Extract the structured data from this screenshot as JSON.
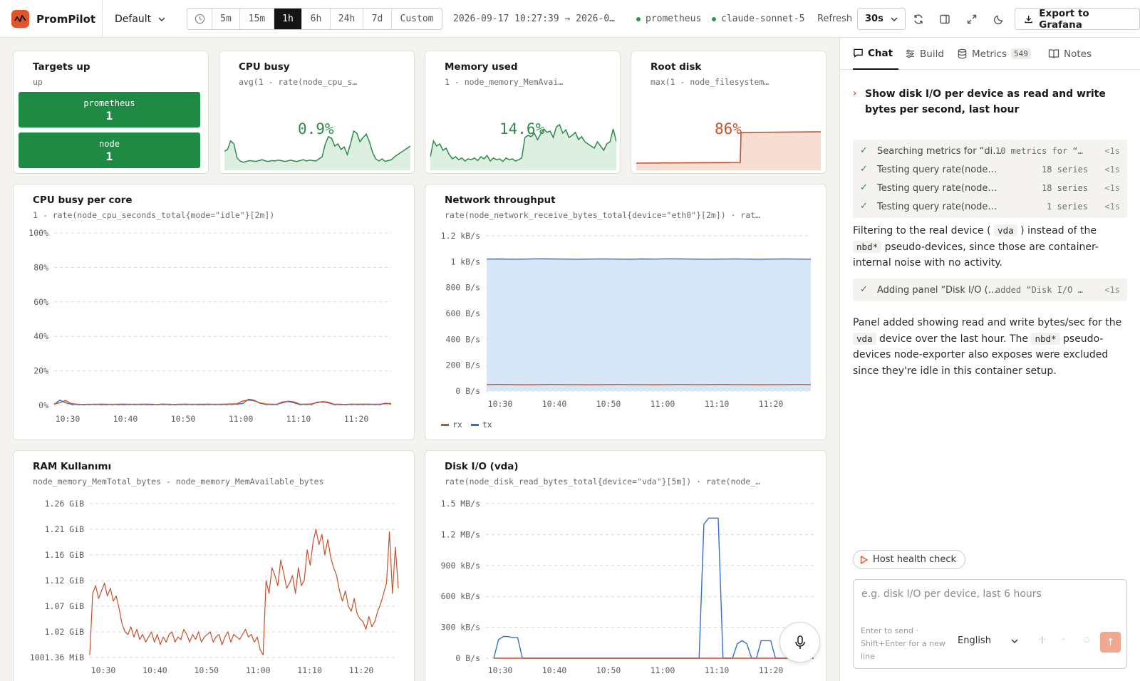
{
  "header": {
    "brand": "PromPilot",
    "workspace": "Default",
    "time_ranges": [
      "5m",
      "15m",
      "1h",
      "6h",
      "24h",
      "7d",
      "Custom"
    ],
    "active_range": "1h",
    "time_window": "2026-09-17 10:27:39 → 2026-0…",
    "datasource": "prometheus",
    "model": "claude-sonnet-5",
    "refresh_label": "Refresh",
    "refresh_value": "30s",
    "export_label": "Export to Grafana",
    "accent_color": "#e2542a"
  },
  "panels": {
    "targets": {
      "title": "Targets up",
      "query": "up",
      "items": [
        {
          "name": "prometheus",
          "value": "1"
        },
        {
          "name": "node",
          "value": "1"
        }
      ],
      "color": "#1f8a43"
    },
    "cpu_stat": {
      "title": "CPU busy",
      "query": "avg(1 - rate(node_cpu_s…",
      "value": "0.9%",
      "color": "#2e8c4a",
      "spark": [
        0.38,
        0.42,
        0.62,
        0.55,
        0.22,
        0.15,
        0.12,
        0.14,
        0.16,
        0.15,
        0.14,
        0.16,
        0.18,
        0.15,
        0.14,
        0.16,
        0.15,
        0.17,
        0.16,
        0.14,
        0.15,
        0.17,
        0.15,
        0.14,
        0.16,
        0.18,
        0.15,
        0.17,
        0.16,
        0.15,
        0.2,
        0.25,
        0.55,
        0.72,
        0.68,
        0.5,
        0.55,
        0.42,
        0.48,
        0.3,
        0.55,
        0.85,
        0.8,
        0.6,
        0.7,
        0.78,
        0.6,
        0.35,
        0.2,
        0.15,
        0.2,
        0.14,
        0.16,
        0.18,
        0.25,
        0.3,
        0.35,
        0.4,
        0.45,
        0.5
      ]
    },
    "mem_stat": {
      "title": "Memory used",
      "query": "1 - node_memory_MemAvai…",
      "value": "14.6%",
      "color": "#2e8c4a",
      "spark": [
        0.25,
        0.62,
        0.5,
        0.55,
        0.4,
        0.45,
        0.3,
        0.2,
        0.25,
        0.18,
        0.22,
        0.15,
        0.2,
        0.18,
        0.22,
        0.16,
        0.25,
        0.2,
        0.28,
        0.15,
        0.22,
        0.18,
        0.2,
        0.14,
        0.22,
        0.18,
        0.2,
        0.15,
        0.18,
        0.22,
        0.7,
        0.75,
        0.72,
        0.8,
        0.65,
        0.78,
        0.9,
        0.82,
        0.85,
        0.7,
        0.95,
        1.0,
        0.8,
        0.88,
        0.7,
        0.75,
        0.82,
        0.65,
        0.72,
        0.6,
        0.55,
        0.5,
        0.45,
        0.6,
        0.5,
        0.4,
        0.55,
        0.6,
        0.9,
        0.6
      ]
    },
    "disk_stat": {
      "title": "Root disk",
      "query": "max(1 - node_filesystem…",
      "value": "86%",
      "color": "#c7502a"
    },
    "cpu_core": {
      "title": "CPU busy per core",
      "query": "1 - rate(node_cpu_seconds_total{mode=\"idle\"}[2m])"
    },
    "network": {
      "title": "Network throughput",
      "query": "rate(node_network_receive_bytes_total{device=\"eth0\"}[2m]) · rat…"
    },
    "ram": {
      "title": "RAM Kullanımı",
      "query": "node_memory_MemTotal_bytes - node_memory_MemAvailable_bytes"
    },
    "disk_io": {
      "title": "Disk I/O (vda)",
      "query": "rate(node_disk_read_bytes_total{device=\"vda\"}[5m]) · rate(node_…"
    }
  },
  "chart_data": [
    {
      "type": "line",
      "name": "cpu_busy_per_core",
      "x_ticks": [
        "10:30",
        "10:40",
        "10:50",
        "11:00",
        "11:10",
        "11:20"
      ],
      "y_ticks": [
        "100%",
        "80%",
        "60%",
        "40%",
        "20%",
        "0%"
      ],
      "ylim": [
        0,
        100
      ],
      "grid": true,
      "series": [
        {
          "color": "#2f6fd6",
          "values": [
            0.5,
            3,
            1.5,
            0.6,
            0.5,
            0.4,
            0.5,
            0.6,
            0.5,
            0.4,
            0.6,
            0.5,
            0.4,
            0.5,
            0.6,
            0.5,
            0.5,
            0.4,
            0.5,
            0.6,
            0.5,
            0.4,
            0.5,
            0.5,
            0.6,
            0.5,
            0.4,
            0.5,
            0.6,
            0.5,
            0.5,
            0.6,
            0.7,
            1.0,
            3.5,
            3.0,
            1.2,
            0.6,
            0.5,
            0.5,
            2.0,
            2.2,
            1.5,
            0.5,
            0.6,
            0.5,
            1.8,
            2.0,
            1.4,
            0.5,
            0.5,
            0.4,
            0.6,
            0.5,
            0.5,
            0.6,
            0.5,
            0.5,
            1.2,
            0.7
          ]
        },
        {
          "color": "#c7502a",
          "values": [
            0.8,
            1.5,
            2.8,
            1.0,
            0.6,
            0.5,
            0.6,
            0.5,
            0.7,
            0.6,
            0.5,
            0.6,
            0.7,
            0.6,
            0.5,
            0.6,
            0.7,
            0.6,
            0.5,
            0.7,
            0.6,
            0.5,
            0.6,
            0.7,
            0.5,
            0.6,
            0.6,
            0.7,
            0.5,
            0.6,
            0.7,
            0.8,
            0.9,
            2.5,
            3.0,
            2.6,
            1.5,
            0.8,
            0.6,
            0.7,
            1.5,
            2.4,
            2.0,
            0.7,
            0.6,
            0.8,
            1.5,
            2.2,
            1.8,
            0.6,
            0.6,
            0.5,
            0.7,
            0.6,
            0.7,
            0.6,
            0.6,
            0.7,
            0.9,
            1.1
          ]
        }
      ]
    },
    {
      "type": "area",
      "name": "network_throughput",
      "x_ticks": [
        "10:30",
        "10:40",
        "10:50",
        "11:00",
        "11:10",
        "11:20"
      ],
      "y_ticks": [
        "1.2 kB/s",
        "1 kB/s",
        "800 B/s",
        "600 B/s",
        "400 B/s",
        "200 B/s",
        "0 B/s"
      ],
      "ylim": [
        0,
        1200
      ],
      "grid": true,
      "legend_position": "bottom-left",
      "series": [
        {
          "name": "rx",
          "color": "#c7502a",
          "values": [
            50,
            51,
            50,
            49,
            50,
            51,
            50,
            50,
            49,
            50,
            51,
            50,
            50,
            49,
            50,
            51,
            50,
            50,
            51,
            50,
            50,
            49,
            50,
            50,
            51,
            50
          ]
        },
        {
          "name": "tx",
          "color": "#2f6fd6",
          "values": [
            1020,
            1021,
            1019,
            1020,
            1022,
            1021,
            1020,
            1019,
            1020,
            1021,
            1020,
            1019,
            1021,
            1020,
            1022,
            1021,
            1020,
            1019,
            1020,
            1021,
            1020,
            1019,
            1020,
            1021,
            1020,
            1019
          ]
        }
      ]
    },
    {
      "type": "line",
      "name": "ram_usage",
      "x_ticks": [
        "10:30",
        "10:40",
        "10:50",
        "11:00",
        "11:10",
        "11:20"
      ],
      "y_ticks": [
        "1.26 GiB",
        "1.21 GiB",
        "1.16 GiB",
        "1.12 GiB",
        "1.07 GiB",
        "1.02 GiB",
        "1001.36 MiB"
      ],
      "ylim": [
        0,
        6
      ],
      "grid": true,
      "series": [
        {
          "color": "#c7502a",
          "values": [
            0.1,
            2.5,
            2.8,
            2.3,
            2.6,
            2.9,
            2.4,
            2.7,
            2.2,
            2.4,
            1.9,
            1.3,
            1.0,
            0.9,
            1.2,
            0.8,
            1.1,
            0.7,
            0.9,
            0.6,
            0.8,
            1.0,
            0.6,
            0.9,
            0.5,
            0.8,
            0.6,
            0.9,
            1.0,
            0.6,
            0.8,
            0.7,
            1.1,
            0.9,
            0.6,
            0.9,
            0.7,
            1.0,
            0.6,
            0.8,
            0.9,
            1.0,
            0.6,
            0.8,
            0.9,
            0.5,
            0.8,
            1.0,
            0.6,
            0.9,
            0.8,
            0.7,
            0.9,
            1.1,
            0.8,
            0.9,
            0.6,
            0.8,
            0.3,
            0.1,
            3.0,
            2.5,
            3.5,
            3.2,
            2.8,
            3.8,
            3.3,
            2.7,
            2.9,
            3.2,
            2.5,
            3.5,
            2.8,
            3.0,
            4.2,
            3.6,
            4.5,
            5.0,
            4.4,
            4.8,
            4.0,
            4.6,
            3.9,
            3.5,
            3.2,
            2.6,
            2.2,
            2.6,
            2.0,
            1.8,
            2.3,
            1.7,
            1.5,
            1.4,
            1.1,
            1.6,
            1.2,
            1.4,
            1.8,
            2.1,
            2.5,
            2.9,
            4.9,
            2.5,
            4.3,
            2.7
          ]
        }
      ]
    },
    {
      "type": "line",
      "name": "disk_io_vda",
      "x_ticks": [
        "10:30",
        "10:40",
        "10:50",
        "11:00",
        "11:10",
        "11:20"
      ],
      "y_ticks": [
        "1.5 MB/s",
        "1.2 MB/s",
        "900 kB/s",
        "600 kB/s",
        "300 kB/s",
        "0 B/s"
      ],
      "ylim": [
        0,
        1500
      ],
      "grid": true,
      "series": [
        {
          "color": "#2f6fd6",
          "values": [
            0,
            180,
            210,
            210,
            200,
            200,
            0,
            0,
            0,
            0,
            0,
            0,
            0,
            0,
            0,
            0,
            0,
            0,
            0,
            0,
            0,
            0,
            0,
            0,
            0,
            0,
            0,
            0,
            0,
            0,
            0,
            0,
            0,
            0,
            0,
            0,
            0,
            0,
            0,
            0,
            0,
            0,
            0,
            0,
            1300,
            1360,
            1360,
            1360,
            0,
            0,
            0,
            140,
            170,
            140,
            0,
            0,
            170,
            170,
            170,
            0,
            0,
            0,
            0,
            0,
            0,
            0,
            0,
            0
          ]
        },
        {
          "color": "#c7502a",
          "values": [
            0,
            0,
            0,
            0,
            0,
            0,
            0,
            0,
            0,
            0,
            0,
            0,
            0,
            0,
            0,
            0,
            0,
            0,
            0,
            0,
            0,
            0,
            0,
            0,
            0,
            0,
            0,
            0,
            0,
            0,
            0,
            0,
            0,
            0,
            0,
            0,
            0,
            0,
            0,
            0,
            0,
            0,
            0,
            0,
            0,
            0,
            0,
            0,
            0,
            0,
            0,
            0,
            0,
            0,
            0,
            0,
            0,
            0,
            0,
            0,
            0,
            0,
            0,
            0,
            0,
            0,
            0,
            0
          ]
        }
      ]
    }
  ],
  "side": {
    "tabs": [
      {
        "label": "Chat",
        "active": true
      },
      {
        "label": "Build"
      },
      {
        "label": "Metrics",
        "badge": "549"
      },
      {
        "label": "Notes"
      }
    ],
    "user_message": "Show disk I/O per device as read and write bytes per second, last hour",
    "steps": [
      {
        "label": "Searching metrics for “di…",
        "result": "10 metrics for “…",
        "time": "<1s"
      },
      {
        "label": "Testing query rate(node…",
        "result": "18 series",
        "time": "<1s"
      },
      {
        "label": "Testing query rate(node…",
        "result": "18 series",
        "time": "<1s"
      },
      {
        "label": "Testing query rate(node…",
        "result": "1 series",
        "time": "<1s"
      }
    ],
    "reply1": {
      "a": "Filtering to the real device (",
      "code1": "vda",
      "b": ") instead of the",
      "code2": "nbd*",
      "c": "pseudo-devices, since those are container-internal noise with no activity."
    },
    "step2": {
      "label": "Adding panel “Disk I/O (…",
      "result": "added “Disk I/O …",
      "time": "<1s"
    },
    "reply2": {
      "a": "Panel added showing read and write bytes/sec for the",
      "code1": "vda",
      "b": "device over the last hour. The",
      "code2": "nbd*",
      "c": "pseudo-devices node-exporter also exposes were excluded since they're idle in this container setup."
    },
    "suggestion": "Host health check",
    "input_placeholder": "e.g. disk I/O per device, last 6 hours",
    "input_hint": "Enter to send · Shift+Enter for a new line",
    "language": "English",
    "send_icon": "↑"
  }
}
